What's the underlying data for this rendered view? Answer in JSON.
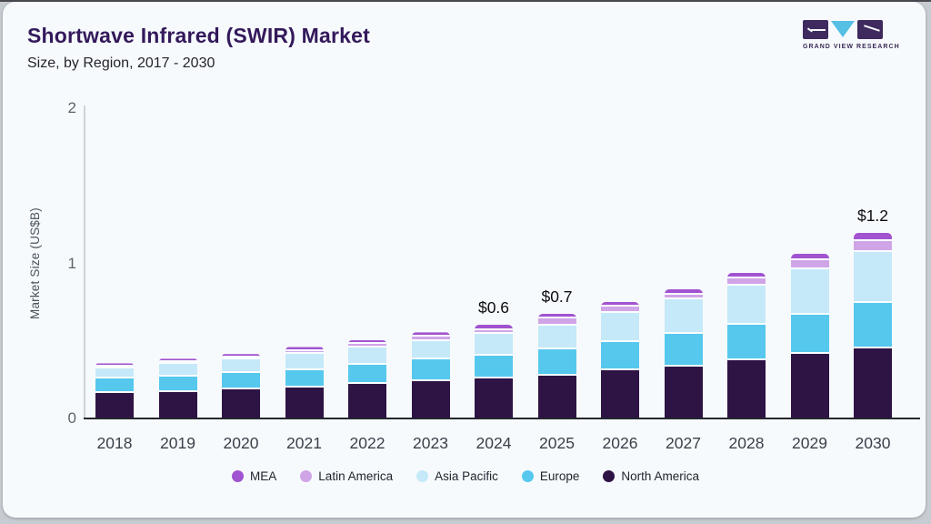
{
  "header": {
    "title": "Shortwave Infrared (SWIR) Market",
    "subtitle": "Size, by Region, 2017 - 2030",
    "logo_text": "GRAND VIEW RESEARCH"
  },
  "chart_data": {
    "type": "bar",
    "stacked": true,
    "title": "Shortwave Infrared (SWIR) Market Size, by Region, 2017 - 2030",
    "xlabel": "",
    "ylabel": "Market Size (US$B)",
    "ylim": [
      0,
      2
    ],
    "yticks": [
      0,
      1,
      2
    ],
    "grid": false,
    "legend_position": "bottom",
    "categories": [
      "2018",
      "2019",
      "2020",
      "2021",
      "2022",
      "2023",
      "2024",
      "2025",
      "2026",
      "2027",
      "2028",
      "2029",
      "2030"
    ],
    "series": [
      {
        "name": "North America",
        "color": "#2e1345",
        "values": [
          0.16,
          0.165,
          0.18,
          0.195,
          0.215,
          0.235,
          0.25,
          0.27,
          0.305,
          0.33,
          0.37,
          0.41,
          0.445
        ]
      },
      {
        "name": "Europe",
        "color": "#56c8ee",
        "values": [
          0.09,
          0.1,
          0.105,
          0.11,
          0.125,
          0.14,
          0.15,
          0.17,
          0.18,
          0.21,
          0.23,
          0.255,
          0.295
        ]
      },
      {
        "name": "Asia Pacific",
        "color": "#c5e9f8",
        "values": [
          0.065,
          0.08,
          0.09,
          0.105,
          0.11,
          0.12,
          0.14,
          0.155,
          0.19,
          0.22,
          0.25,
          0.29,
          0.325
        ]
      },
      {
        "name": "Latin America",
        "color": "#d0a5e8",
        "values": [
          0.015,
          0.015,
          0.015,
          0.02,
          0.025,
          0.025,
          0.025,
          0.045,
          0.04,
          0.035,
          0.05,
          0.06,
          0.075
        ]
      },
      {
        "name": "MEA",
        "color": "#a153d0",
        "values": [
          0.02,
          0.02,
          0.02,
          0.025,
          0.025,
          0.03,
          0.035,
          0.03,
          0.03,
          0.035,
          0.03,
          0.04,
          0.05
        ]
      }
    ],
    "bar_totals": [
      0.35,
      0.38,
      0.41,
      0.455,
      0.5,
      0.55,
      0.6,
      0.67,
      0.745,
      0.83,
      0.93,
      1.055,
      1.19
    ],
    "bar_labels": [
      "",
      "",
      "",
      "",
      "",
      "",
      "$0.6",
      "$0.7",
      "",
      "",
      "",
      "",
      "$1.2"
    ],
    "legend": [
      {
        "label": "MEA",
        "color": "#a153d0"
      },
      {
        "label": "Latin America",
        "color": "#d0a5e8"
      },
      {
        "label": "Asia Pacific",
        "color": "#c5e9f8"
      },
      {
        "label": "Europe",
        "color": "#56c8ee"
      },
      {
        "label": "North America",
        "color": "#2e1345"
      }
    ]
  },
  "colors": {
    "card_background": "#f7fafc",
    "page_background": "#c7ccd2",
    "title": "#33195b",
    "axis_line": "#23272f",
    "logo_block": "#3e2a5e",
    "logo_triangle": "#55bfe4"
  }
}
